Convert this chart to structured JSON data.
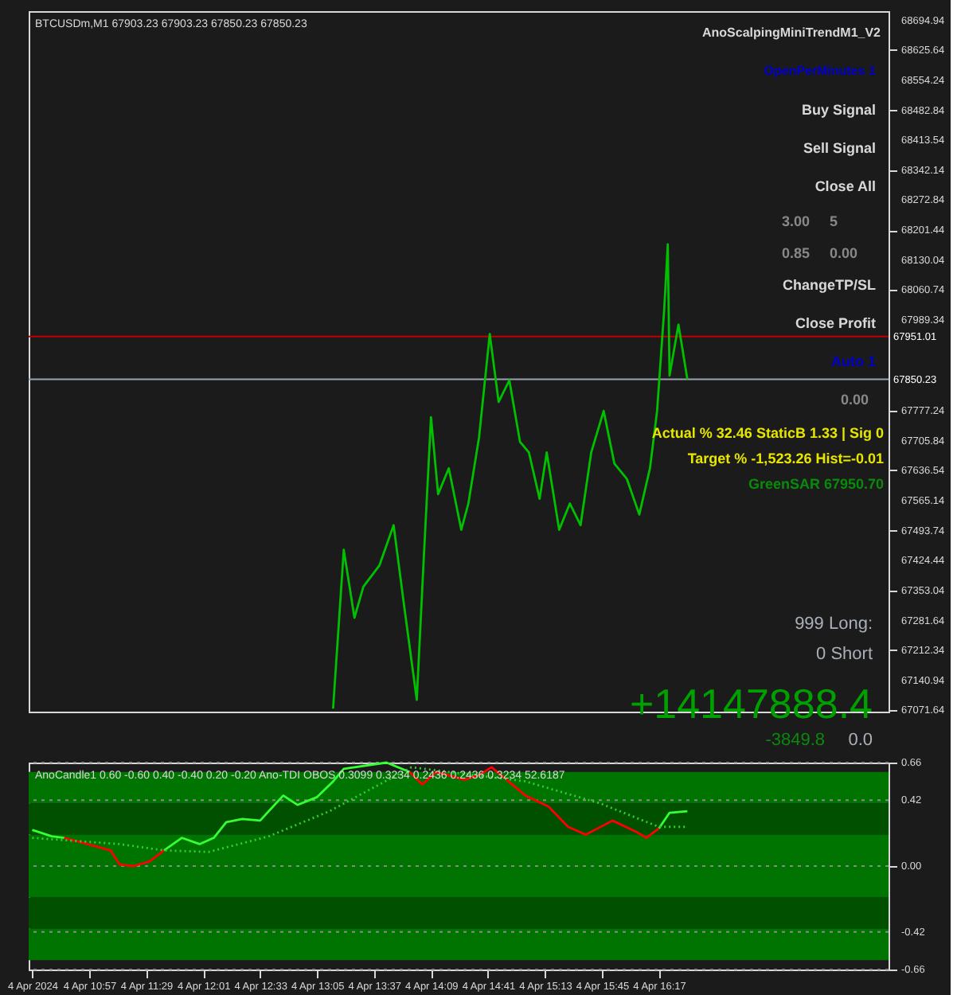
{
  "chart_data": [
    {
      "type": "line",
      "title": "BTCUSDm,M1  67903.23 67903.23 67850.23 67850.23",
      "x": [
        "2024-04-04T13:14",
        "2024-04-04T13:20",
        "2024-04-04T13:26",
        "2024-04-04T13:31",
        "2024-04-04T13:40",
        "2024-04-04T13:48",
        "2024-04-04T13:54",
        "2024-04-04T14:01",
        "2024-04-04T14:05",
        "2024-04-04T14:09",
        "2024-04-04T14:13",
        "2024-04-04T14:19",
        "2024-04-04T14:26",
        "2024-04-04T14:30",
        "2024-04-04T14:36",
        "2024-04-04T14:42",
        "2024-04-04T14:47",
        "2024-04-04T14:53",
        "2024-04-04T14:59",
        "2024-04-04T15:04",
        "2024-04-04T15:10",
        "2024-04-04T15:14",
        "2024-04-04T15:21",
        "2024-04-04T15:27",
        "2024-04-04T15:33",
        "2024-04-04T15:39",
        "2024-04-04T15:46",
        "2024-04-04T15:52",
        "2024-04-04T15:59",
        "2024-04-04T16:06",
        "2024-04-04T16:12",
        "2024-04-04T16:16",
        "2024-04-04T16:20",
        "2024-04-04T16:22",
        "2024-04-04T16:23",
        "2024-04-04T16:28",
        "2024-04-04T16:33"
      ],
      "series": [
        {
          "color": "#00c000",
          "values": [
            67075,
            67449,
            67289,
            67362,
            67412,
            67507,
            67314,
            67096,
            67434,
            67761,
            67580,
            67641,
            67496,
            67558,
            67714,
            67957,
            67797,
            67848,
            67703,
            67678,
            67569,
            67678,
            67496,
            67558,
            67507,
            67678,
            67776,
            67652,
            67616,
            67532,
            67641,
            67776,
            68015,
            68168,
            67859,
            67979,
            67850.23
          ]
        }
      ],
      "xlim": [
        "2024-04-04T10:23",
        "2024-04-04T18:26"
      ],
      "ylim": [
        67068,
        68717
      ],
      "yticks": [
        68694.94,
        68625.64,
        68554.24,
        68482.84,
        68413.54,
        68342.14,
        68272.84,
        68201.44,
        68130.04,
        68060.74,
        67989.34,
        67777.24,
        67705.84,
        67636.54,
        67565.14,
        67493.74,
        67424.44,
        67353.04,
        67281.64,
        67212.34,
        67140.94,
        67071.64
      ],
      "tick_labels": "y",
      "grid": false,
      "ref_lines": [
        {
          "axis": "y",
          "value": 67951.01,
          "label": "67951.01",
          "color": "#c00000"
        },
        {
          "axis": "y",
          "value": 67850.23,
          "label": "67850.23",
          "color": "#9aa4b0"
        }
      ],
      "annotations": [
        "AnoScalpingMiniTrendM1_V2",
        "OpenPerMinutes 1",
        "Buy Signal",
        "Sell Signal",
        "Close All",
        "3.00",
        "5",
        "0.85",
        "0.00",
        "ChangeTP/SL",
        "Close Profit",
        "Auto 1",
        "0.00",
        "Actual %  32.46  StaticB 1.33 | Sig 0",
        "Target % -1,523.26  Hist=-0.01",
        "GreenSAR  67950.70",
        "999  Long:",
        "0  Short",
        "+14147888.4",
        "-3849.8",
        "0.0"
      ]
    },
    {
      "type": "line",
      "title": "AnoCandle1 0.60 -0.60 0.40 -0.40 0.20 -0.20   Ano-TDI OBOS 0.3099 0.3234 0.2436 0.2436 0.3234 52.6187",
      "x": [
        "2024-04-04T10:25",
        "2024-04-04T10:36",
        "2024-04-04T10:43",
        "2024-04-04T10:56",
        "2024-04-04T11:09",
        "2024-04-04T11:14",
        "2024-04-04T11:22",
        "2024-04-04T11:31",
        "2024-04-04T11:39",
        "2024-04-04T11:49",
        "2024-04-04T11:59",
        "2024-04-04T12:07",
        "2024-04-04T12:14",
        "2024-04-04T12:23",
        "2024-04-04T12:33",
        "2024-04-04T12:46",
        "2024-04-04T12:54",
        "2024-04-04T13:05",
        "2024-04-04T13:14",
        "2024-04-04T13:20",
        "2024-04-04T13:44",
        "2024-04-04T13:57",
        "2024-04-04T14:04",
        "2024-04-04T14:12",
        "2024-04-04T14:28",
        "2024-04-04T14:36",
        "2024-04-04T14:43",
        "2024-04-04T15:02",
        "2024-04-04T15:15",
        "2024-04-04T15:26",
        "2024-04-04T15:36",
        "2024-04-04T15:51",
        "2024-04-04T16:04",
        "2024-04-04T16:10",
        "2024-04-04T16:17",
        "2024-04-04T16:23",
        "2024-04-04T16:33"
      ],
      "series": [
        {
          "color": "#33ff33",
          "values": [
            0.23,
            0.19,
            0.18,
            null,
            null,
            null,
            null,
            null,
            0.1,
            0.18,
            0.14,
            0.18,
            0.28,
            0.3,
            0.29,
            0.45,
            0.39,
            0.44,
            0.54,
            0.62,
            0.66,
            0.6,
            null,
            null,
            null,
            null,
            null,
            null,
            null,
            null,
            null,
            null,
            null,
            null,
            0.24,
            0.34,
            0.35
          ]
        },
        {
          "color": "#ff0000",
          "values": [
            null,
            null,
            0.18,
            0.14,
            0.1,
            0.01,
            0.0,
            0.03,
            0.1,
            null,
            null,
            null,
            null,
            null,
            null,
            null,
            null,
            null,
            null,
            null,
            null,
            0.6,
            0.52,
            0.6,
            0.55,
            0.58,
            0.63,
            0.45,
            0.38,
            0.25,
            0.2,
            0.29,
            0.22,
            0.18,
            0.24,
            null,
            null
          ]
        },
        {
          "color": "#33cc33",
          "line_style": "dotted",
          "x": [
            "2024-04-04T10:25",
            "2024-04-04T11:14",
            "2024-04-04T11:39",
            "2024-04-04T12:04",
            "2024-04-04T12:38",
            "2024-04-04T13:12",
            "2024-04-04T13:58",
            "2024-04-04T15:02",
            "2024-04-04T15:44",
            "2024-04-04T16:17",
            "2024-04-04T16:33"
          ],
          "values": [
            0.18,
            0.14,
            0.1,
            0.09,
            0.19,
            0.35,
            0.63,
            0.54,
            0.4,
            0.25,
            0.25
          ]
        }
      ],
      "xlim": [
        "2024-04-04T10:23",
        "2024-04-04T18:26"
      ],
      "ylim": [
        -0.66,
        0.66
      ],
      "yticks": [
        0.66,
        0.42,
        {
          "value": 0,
          "label": "0.00"
        },
        -0.42,
        -0.66
      ],
      "xticks": [
        {
          "value": "2024-04-04T10:25",
          "label": "4 Apr 2024"
        },
        {
          "value": "2024-04-04T10:57",
          "label": "4 Apr 10:57"
        },
        {
          "value": "2024-04-04T11:29",
          "label": "4 Apr 11:29"
        },
        {
          "value": "2024-04-04T12:01",
          "label": "4 Apr 12:01"
        },
        {
          "value": "2024-04-04T12:33",
          "label": "4 Apr 12:33"
        },
        {
          "value": "2024-04-04T13:05",
          "label": "4 Apr 13:05"
        },
        {
          "value": "2024-04-04T13:37",
          "label": "4 Apr 13:37"
        },
        {
          "value": "2024-04-04T14:09",
          "label": "4 Apr 14:09"
        },
        {
          "value": "2024-04-04T14:41",
          "label": "4 Apr 14:41"
        },
        {
          "value": "2024-04-04T15:13",
          "label": "4 Apr 15:13"
        },
        {
          "value": "2024-04-04T15:45",
          "label": "4 Apr 15:45"
        },
        {
          "value": "2024-04-04T16:17",
          "label": "4 Apr 16:17"
        }
      ],
      "grid": "y",
      "bands": [
        {
          "axis": "y",
          "from": 0.4,
          "to": 0.6,
          "color": "#007400"
        },
        {
          "axis": "y",
          "from": 0.2,
          "to": 0.4,
          "color": "#005000"
        },
        {
          "axis": "y",
          "from": -0.2,
          "to": 0.2,
          "color": "#007400"
        },
        {
          "axis": "y",
          "from": -0.4,
          "to": -0.2,
          "color": "#005000"
        },
        {
          "axis": "y",
          "from": -0.6,
          "to": -0.4,
          "color": "#007400"
        }
      ]
    }
  ]
}
